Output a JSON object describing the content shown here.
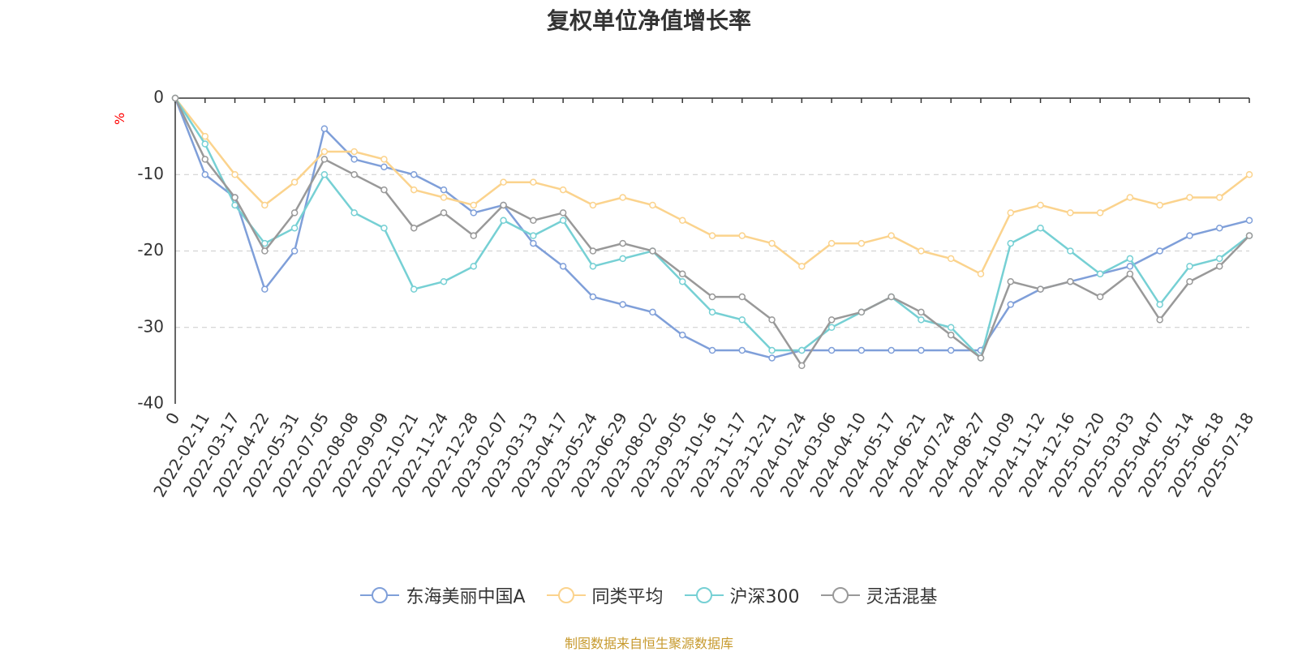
{
  "title": "复权单位净值增长率",
  "unit_label": "%",
  "source_note": "制图数据来自恒生聚源数据库",
  "chart_data": {
    "type": "line",
    "ylim": [
      -40,
      0
    ],
    "y_ticks": [
      0,
      -10,
      -20,
      -30,
      -40
    ],
    "grid": "horizontal-dashed",
    "legend_position": "bottom-center",
    "x": [
      "0",
      "2022-02-11",
      "2022-03-17",
      "2022-04-22",
      "2022-05-31",
      "2022-07-05",
      "2022-08-08",
      "2022-09-09",
      "2022-10-21",
      "2022-11-24",
      "2022-12-28",
      "2023-02-07",
      "2023-03-13",
      "2023-04-17",
      "2023-05-24",
      "2023-06-29",
      "2023-08-02",
      "2023-09-05",
      "2023-10-16",
      "2023-11-17",
      "2023-12-21",
      "2024-01-24",
      "2024-03-06",
      "2024-04-10",
      "2024-05-17",
      "2024-06-21",
      "2024-07-24",
      "2024-08-27",
      "2024-10-09",
      "2024-11-12",
      "2024-12-16",
      "2025-01-20",
      "2025-03-03",
      "2025-04-07",
      "2025-05-14",
      "2025-06-18",
      "2025-07-18"
    ],
    "series": [
      {
        "name": "东海美丽中国A",
        "color": "#7f9fd9",
        "values": [
          0,
          -10,
          -13,
          -25,
          -20,
          -4,
          -8,
          -9,
          -10,
          -12,
          -15,
          -14,
          -19,
          -22,
          -26,
          -27,
          -28,
          -31,
          -33,
          -33,
          -34,
          -33,
          -33,
          -33,
          -33,
          -33,
          -33,
          -33,
          -27,
          -25,
          -24,
          -23,
          -22,
          -20,
          -18,
          -17,
          -16
        ]
      },
      {
        "name": "同类平均",
        "color": "#fbd38d",
        "values": [
          0,
          -5,
          -10,
          -14,
          -11,
          -7,
          -7,
          -8,
          -12,
          -13,
          -14,
          -11,
          -11,
          -12,
          -14,
          -13,
          -14,
          -16,
          -18,
          -18,
          -19,
          -22,
          -19,
          -19,
          -18,
          -20,
          -21,
          -23,
          -15,
          -14,
          -15,
          -15,
          -13,
          -14,
          -13,
          -13,
          -10
        ]
      },
      {
        "name": "沪深300",
        "color": "#76d0d4",
        "values": [
          0,
          -6,
          -14,
          -19,
          -17,
          -10,
          -15,
          -17,
          -25,
          -24,
          -22,
          -16,
          -18,
          -16,
          -22,
          -21,
          -20,
          -24,
          -28,
          -29,
          -33,
          -33,
          -30,
          -28,
          -26,
          -29,
          -30,
          -34,
          -19,
          -17,
          -20,
          -23,
          -21,
          -27,
          -22,
          -21,
          -18
        ]
      },
      {
        "name": "灵活混基",
        "color": "#999999",
        "values": [
          0,
          -8,
          -13,
          -20,
          -15,
          -8,
          -10,
          -12,
          -17,
          -15,
          -18,
          -14,
          -16,
          -15,
          -20,
          -19,
          -20,
          -23,
          -26,
          -26,
          -29,
          -35,
          -29,
          -28,
          -26,
          -28,
          -31,
          -34,
          -24,
          -25,
          -24,
          -26,
          -23,
          -29,
          -24,
          -22,
          -18
        ]
      }
    ]
  }
}
